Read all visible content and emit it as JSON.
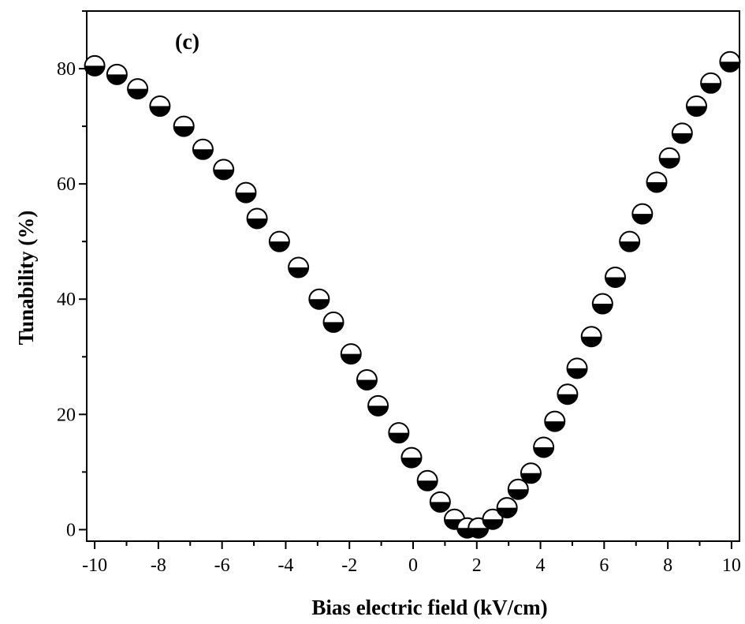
{
  "chart_data": {
    "type": "scatter",
    "panel_label": "(c)",
    "xlabel": "Bias electric field (kV/cm)",
    "ylabel": "Tunability (%)",
    "xlim": [
      -10.25,
      10.25
    ],
    "ylim": [
      -2,
      90
    ],
    "xticks": [
      -10,
      -8,
      -6,
      -4,
      -2,
      0,
      2,
      4,
      6,
      8,
      10
    ],
    "yticks": [
      0,
      20,
      40,
      60,
      80
    ],
    "grid": false,
    "marker": "half-filled circle (black bottom, white top)",
    "points": [
      {
        "x": -10.0,
        "y": 80.5
      },
      {
        "x": -9.3,
        "y": 79.0
      },
      {
        "x": -8.65,
        "y": 76.5
      },
      {
        "x": -7.95,
        "y": 73.5
      },
      {
        "x": -7.2,
        "y": 70.0
      },
      {
        "x": -6.6,
        "y": 66.0
      },
      {
        "x": -5.95,
        "y": 62.5
      },
      {
        "x": -5.25,
        "y": 58.5
      },
      {
        "x": -4.9,
        "y": 54.0
      },
      {
        "x": -4.2,
        "y": 50.0
      },
      {
        "x": -3.6,
        "y": 45.5
      },
      {
        "x": -2.95,
        "y": 40.0
      },
      {
        "x": -2.5,
        "y": 36.0
      },
      {
        "x": -1.95,
        "y": 30.5
      },
      {
        "x": -1.45,
        "y": 26.0
      },
      {
        "x": -1.1,
        "y": 21.5
      },
      {
        "x": -0.45,
        "y": 16.8
      },
      {
        "x": -0.05,
        "y": 12.5
      },
      {
        "x": 0.45,
        "y": 8.5
      },
      {
        "x": 0.85,
        "y": 4.8
      },
      {
        "x": 1.3,
        "y": 1.8
      },
      {
        "x": 1.7,
        "y": 0.3
      },
      {
        "x": 2.05,
        "y": 0.3
      },
      {
        "x": 2.5,
        "y": 1.8
      },
      {
        "x": 2.95,
        "y": 3.8
      },
      {
        "x": 3.3,
        "y": 7.0
      },
      {
        "x": 3.7,
        "y": 9.8
      },
      {
        "x": 4.1,
        "y": 14.3
      },
      {
        "x": 4.45,
        "y": 18.8
      },
      {
        "x": 4.85,
        "y": 23.5
      },
      {
        "x": 5.15,
        "y": 28.0
      },
      {
        "x": 5.6,
        "y": 33.5
      },
      {
        "x": 5.95,
        "y": 39.2
      },
      {
        "x": 6.35,
        "y": 43.8
      },
      {
        "x": 6.8,
        "y": 50.0
      },
      {
        "x": 7.2,
        "y": 54.8
      },
      {
        "x": 7.65,
        "y": 60.3
      },
      {
        "x": 8.05,
        "y": 64.5
      },
      {
        "x": 8.45,
        "y": 68.8
      },
      {
        "x": 8.9,
        "y": 73.5
      },
      {
        "x": 9.35,
        "y": 77.5
      },
      {
        "x": 9.95,
        "y": 81.2
      }
    ]
  }
}
